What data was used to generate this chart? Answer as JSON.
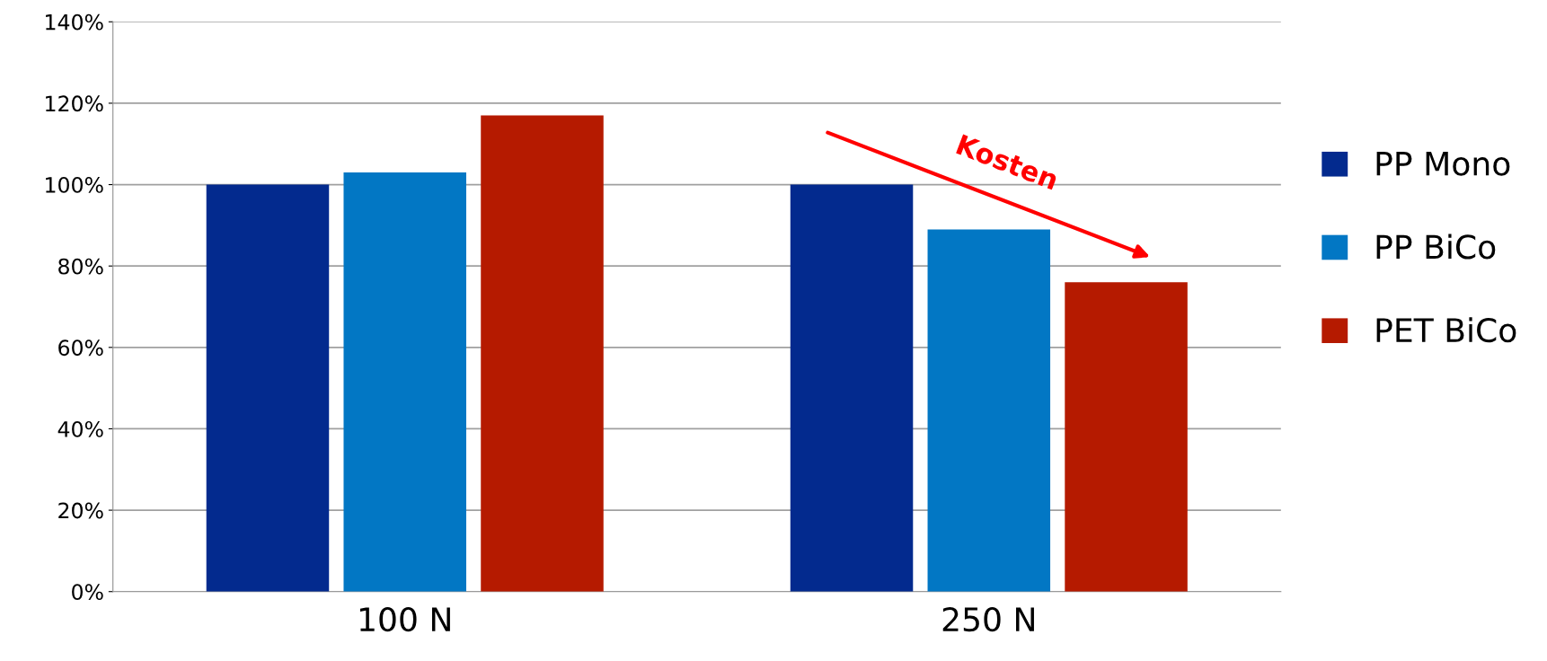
{
  "chart_data": {
    "type": "bar",
    "categories": [
      "100 N",
      "250 N"
    ],
    "series": [
      {
        "name": "PP Mono",
        "color": "#032a8e",
        "values": [
          100,
          100
        ]
      },
      {
        "name": "PP BiCo",
        "color": "#0277c4",
        "values": [
          103,
          89
        ]
      },
      {
        "name": "PET BiCo",
        "color": "#b51a00",
        "values": [
          117,
          76
        ]
      }
    ],
    "ylim": [
      0,
      140
    ],
    "yticks": [
      {
        "value": 0,
        "label": "0%"
      },
      {
        "value": 20,
        "label": "20%"
      },
      {
        "value": 40,
        "label": "40%"
      },
      {
        "value": 60,
        "label": "60%"
      },
      {
        "value": 80,
        "label": "80%"
      },
      {
        "value": 100,
        "label": "100%"
      },
      {
        "value": 120,
        "label": "120%"
      },
      {
        "value": 140,
        "label": "140%"
      }
    ],
    "grid": "y",
    "legend": "right",
    "annotations": [
      "Kosten"
    ]
  }
}
